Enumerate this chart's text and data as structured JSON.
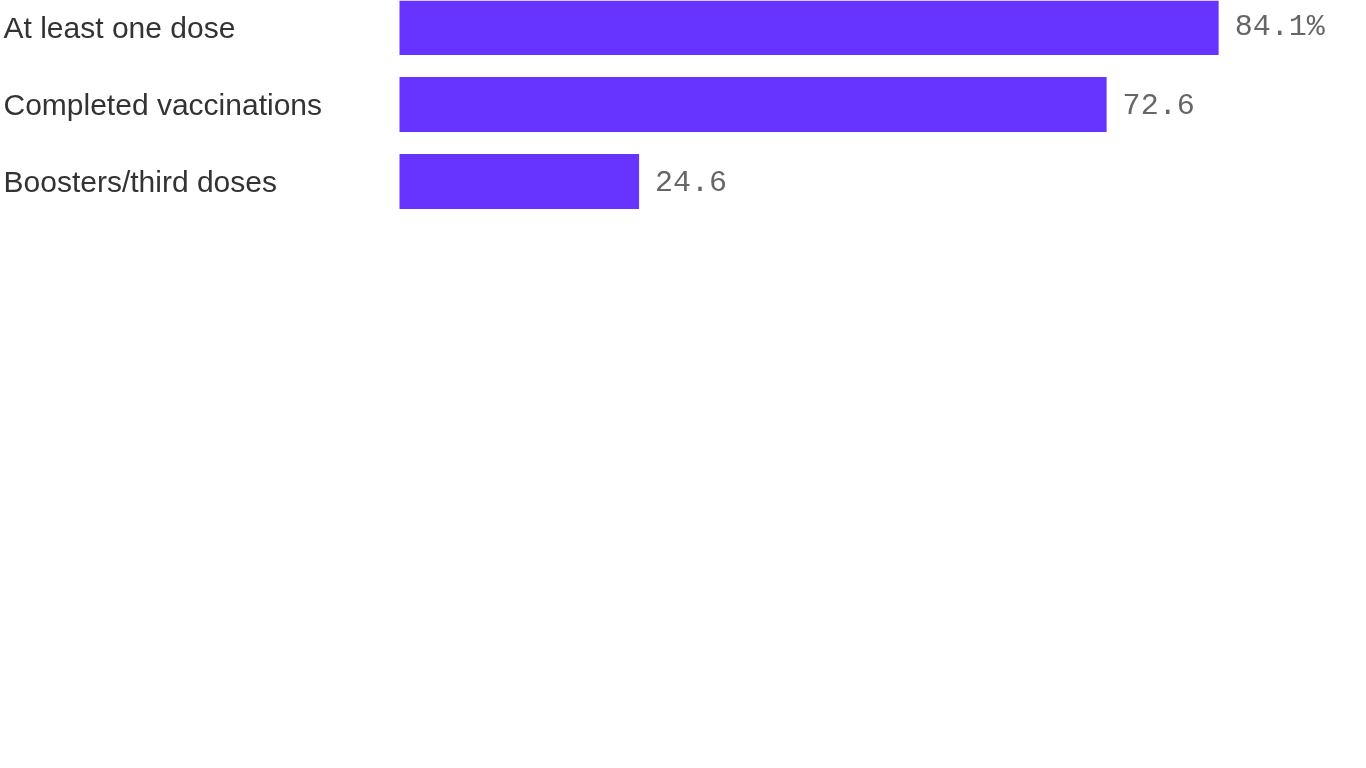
{
  "chart_data": {
    "type": "bar",
    "orientation": "horizontal",
    "categories": [
      "At least one dose",
      "Completed vaccinations",
      "Boosters/third doses"
    ],
    "values": [
      84.1,
      72.6,
      24.6
    ],
    "color": "#6633ff",
    "value_labels": [
      "84.1%",
      "72.6",
      "24.6"
    ]
  }
}
